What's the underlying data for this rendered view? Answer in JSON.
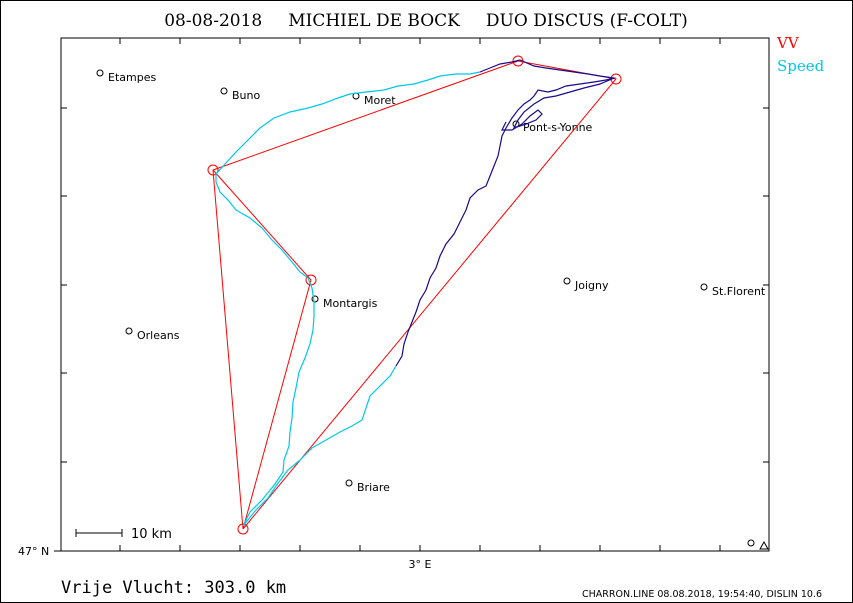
{
  "header": {
    "date": "08-08-2018",
    "pilot": "MICHIEL DE BOCK",
    "glider": "DUO DISCUS (F-COLT)"
  },
  "legend": {
    "task_label": "VV",
    "task_color": "#ff0000",
    "speed_label": "Speed",
    "speed_color": "#00c8e8"
  },
  "axes": {
    "lat_label": "47° N",
    "lon_label": "3° E"
  },
  "scale_bar": {
    "label": "10 km"
  },
  "footer": {
    "distance": "Vrije Vlucht:  303.0 km",
    "credits": "CHARRON.LINE 08.08.2018, 19:54:40, DISLIN 10.6"
  },
  "places": [
    {
      "name": "Etampes"
    },
    {
      "name": "Buno"
    },
    {
      "name": "Moret"
    },
    {
      "name": "Pont-s-Yonne"
    },
    {
      "name": "Joigny"
    },
    {
      "name": "St.Florent"
    },
    {
      "name": "Montargis"
    },
    {
      "name": "Orleans"
    },
    {
      "name": "Briare"
    }
  ],
  "colors": {
    "track_fast": "#00c8e8",
    "track_slow": "#1a0a8c",
    "task_line": "#ff0000",
    "frame": "#000000"
  }
}
